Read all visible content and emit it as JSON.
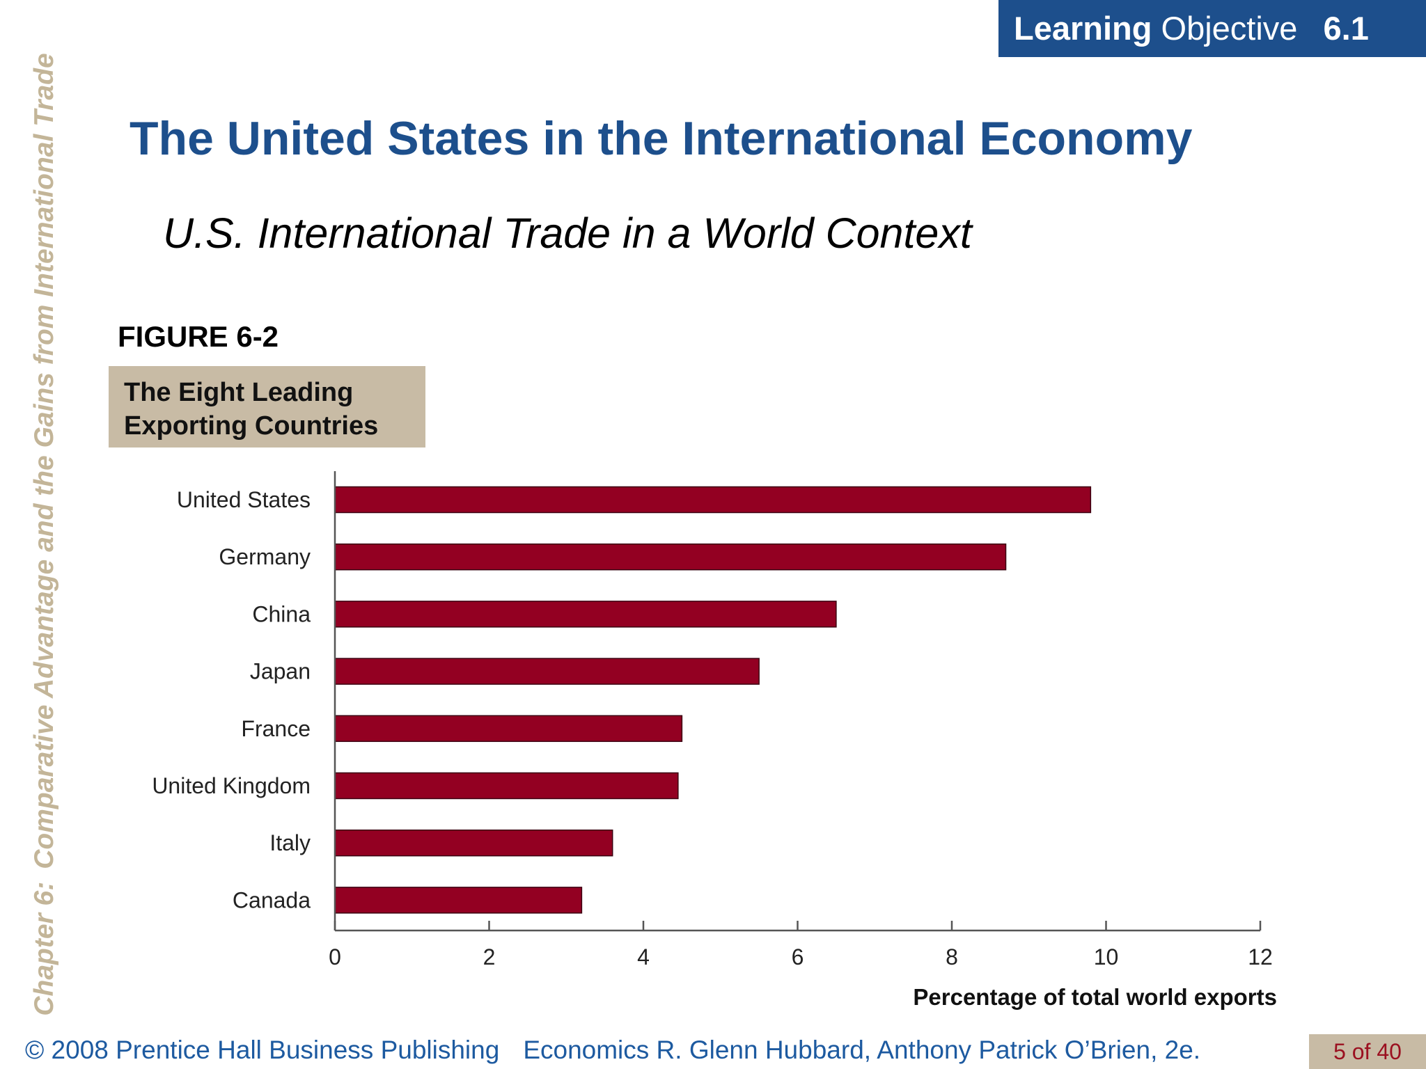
{
  "header": {
    "badge_bold": "Learning",
    "badge_regular": "Objective",
    "badge_number": "6.1"
  },
  "sidebar": {
    "chapter": "Chapter 6:",
    "chapter_title": "Comparative Advantage and the Gains from International Trade"
  },
  "slide": {
    "title": "The United States in the International Economy",
    "subtitle": "U.S. International Trade in a World Context",
    "figure_label": "FIGURE 6-2",
    "figure_caption_line1": "The Eight Leading",
    "figure_caption_line2": "Exporting Countries"
  },
  "chart_data": {
    "type": "bar",
    "orientation": "horizontal",
    "categories": [
      "United States",
      "Germany",
      "China",
      "Japan",
      "France",
      "United Kingdom",
      "Italy",
      "Canada"
    ],
    "values": [
      9.8,
      8.7,
      6.5,
      5.5,
      4.5,
      4.45,
      3.6,
      3.2
    ],
    "xlabel": "Percentage of total world exports",
    "ylabel": "",
    "xlim": [
      0,
      12
    ],
    "xticks": [
      0,
      2,
      4,
      6,
      8,
      10,
      12
    ],
    "grid": false,
    "bar_color": "#930022"
  },
  "footer": {
    "copyright": "© 2008 Prentice Hall Business Publishing",
    "book": "Economics",
    "authors": "R. Glenn Hubbard, Anthony Patrick O’Brien, 2e.",
    "page": "5 of 40"
  },
  "colors": {
    "brand_blue": "#1d4f8c",
    "tan": "#c8bba5",
    "side_text": "#c3b598",
    "page_number": "#9b1020"
  }
}
